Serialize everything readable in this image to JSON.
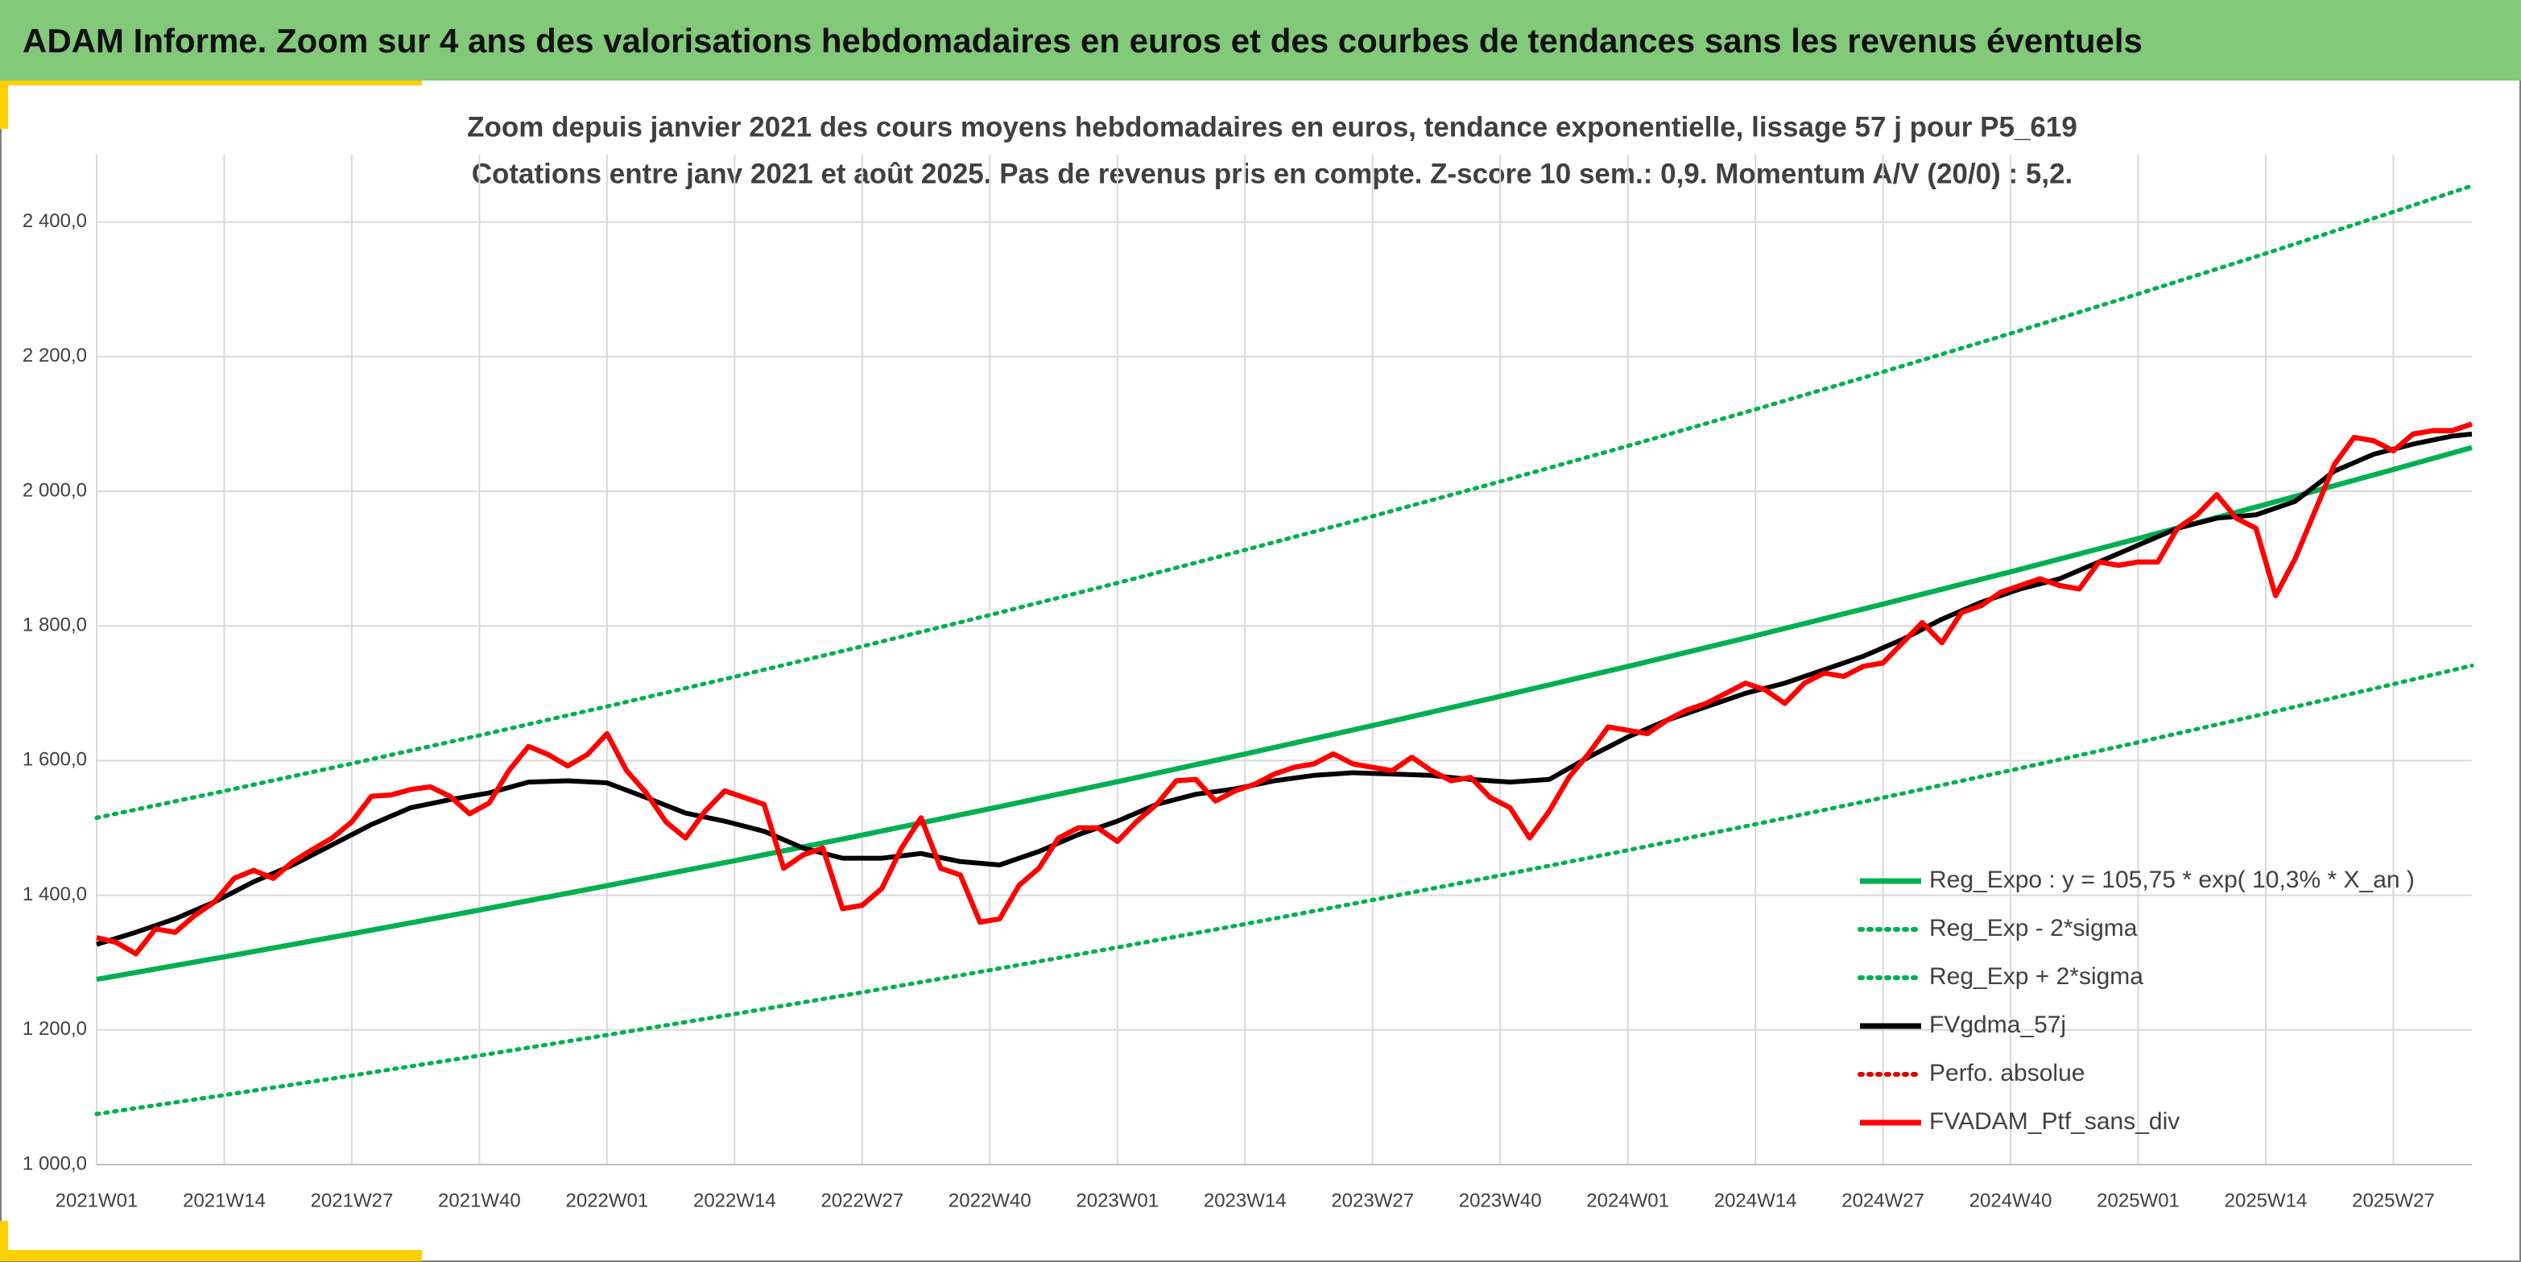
{
  "header": {
    "title": "ADAM Informe. Zoom sur 4 ans des valorisations hebdomadaires en euros et des courbes de tendances sans les revenus éventuels"
  },
  "chart_data": {
    "type": "line",
    "title": "Zoom depuis janvier 2021 des cours moyens hebdomadaires en euros, tendance exponentielle, lissage 57 j pour P5_619",
    "subtitle": "Cotations entre janv 2021 et août 2025. Pas de revenus pris en compte. Z-score 10 sem.: 0,9. Momentum A/V (20/0) : 5,2.",
    "xlim": [
      0,
      242
    ],
    "xticks": [
      {
        "value": 0,
        "label": "2021W01"
      },
      {
        "value": 13,
        "label": "2021W14"
      },
      {
        "value": 26,
        "label": "2021W27"
      },
      {
        "value": 39,
        "label": "2021W40"
      },
      {
        "value": 52,
        "label": "2022W01"
      },
      {
        "value": 65,
        "label": "2022W14"
      },
      {
        "value": 78,
        "label": "2022W27"
      },
      {
        "value": 91,
        "label": "2022W40"
      },
      {
        "value": 104,
        "label": "2023W01"
      },
      {
        "value": 117,
        "label": "2023W14"
      },
      {
        "value": 130,
        "label": "2023W27"
      },
      {
        "value": 143,
        "label": "2023W40"
      },
      {
        "value": 156,
        "label": "2024W01"
      },
      {
        "value": 169,
        "label": "2024W14"
      },
      {
        "value": 182,
        "label": "2024W27"
      },
      {
        "value": 195,
        "label": "2024W40"
      },
      {
        "value": 208,
        "label": "2025W01"
      },
      {
        "value": 221,
        "label": "2025W14"
      },
      {
        "value": 234,
        "label": "2025W27"
      }
    ],
    "ylim": [
      1000,
      2500
    ],
    "yticks": [
      {
        "value": 1000,
        "label": "1 000,0"
      },
      {
        "value": 1200,
        "label": "1 200,0"
      },
      {
        "value": 1400,
        "label": "1 400,0"
      },
      {
        "value": 1600,
        "label": "1 600,0"
      },
      {
        "value": 1800,
        "label": "1 800,0"
      },
      {
        "value": 2000,
        "label": "2 000,0"
      },
      {
        "value": 2200,
        "label": "2 200,0"
      },
      {
        "value": 2400,
        "label": "2 400,0"
      }
    ],
    "grid": true,
    "legend": "bottom-right",
    "series": [
      {
        "name": "Reg_Expo : y = 105,75 * exp( 10,3% *  X_an )",
        "color": "#00b050",
        "style": "solid",
        "x": [
          0,
          13,
          26,
          39,
          52,
          65,
          78,
          91,
          104,
          117,
          130,
          143,
          156,
          169,
          182,
          195,
          208,
          221,
          234,
          242
        ],
        "values": [
          1275,
          1308.5,
          1342.8,
          1378.0,
          1414.2,
          1451.3,
          1489.4,
          1528.5,
          1568.6,
          1609.8,
          1652.0,
          1695.4,
          1739.8,
          1785.5,
          1832.4,
          1880.4,
          1929.8,
          1980.4,
          2032.4,
          2065.0
        ]
      },
      {
        "name": "Reg_Exp - 2*sigma",
        "color": "#00b050",
        "style": "dotted",
        "x": [
          0,
          13,
          26,
          39,
          52,
          65,
          78,
          91,
          104,
          117,
          130,
          143,
          156,
          169,
          182,
          195,
          208,
          221,
          234,
          242
        ],
        "values": [
          1075,
          1103.2,
          1132.2,
          1161.9,
          1192.4,
          1223.6,
          1255.8,
          1288.7,
          1322.5,
          1357.2,
          1392.9,
          1429.4,
          1466.9,
          1505.4,
          1544.9,
          1585.5,
          1627.1,
          1669.8,
          1713.6,
          1741.1
        ]
      },
      {
        "name": "Reg_Exp + 2*sigma",
        "color": "#00b050",
        "style": "dotted",
        "x": [
          0,
          13,
          26,
          39,
          52,
          65,
          78,
          91,
          104,
          117,
          130,
          143,
          156,
          169,
          182,
          195,
          208,
          221,
          234,
          242
        ],
        "values": [
          1515,
          1554.8,
          1595.6,
          1637.4,
          1680.4,
          1724.5,
          1769.7,
          1816.2,
          1863.8,
          1912.8,
          1963.0,
          2014.5,
          2067.3,
          2121.6,
          2177.3,
          2234.4,
          2293.1,
          2353.2,
          2415.0,
          2453.7
        ]
      },
      {
        "name": "FVgdma_57j",
        "color": "#000000",
        "style": "solid",
        "x": [
          0,
          4,
          8,
          12,
          16,
          20,
          24,
          28,
          32,
          36,
          40,
          44,
          48,
          52,
          56,
          60,
          64,
          68,
          72,
          76,
          80,
          84,
          88,
          92,
          96,
          100,
          104,
          108,
          112,
          116,
          120,
          124,
          128,
          132,
          136,
          140,
          144,
          148,
          152,
          156,
          160,
          164,
          168,
          172,
          176,
          180,
          184,
          188,
          192,
          196,
          200,
          204,
          208,
          212,
          216,
          220,
          224,
          228,
          232,
          236,
          240,
          242
        ],
        "values": [
          1327,
          1345,
          1365,
          1390,
          1420,
          1445,
          1475,
          1505,
          1530,
          1542,
          1552,
          1568,
          1570,
          1567,
          1545,
          1522,
          1510,
          1495,
          1470,
          1455,
          1455,
          1462,
          1450,
          1445,
          1465,
          1490,
          1510,
          1535,
          1550,
          1558,
          1570,
          1578,
          1582,
          1580,
          1578,
          1572,
          1568,
          1572,
          1605,
          1635,
          1660,
          1680,
          1700,
          1715,
          1735,
          1755,
          1780,
          1810,
          1835,
          1855,
          1870,
          1895,
          1920,
          1945,
          1960,
          1965,
          1985,
          2030,
          2055,
          2070,
          2082,
          2085
        ]
      },
      {
        "name": "Perfo. absolue",
        "color": "#e00000",
        "style": "dotted",
        "x": [],
        "values": []
      },
      {
        "name": "FVADAM_Ptf_sans_div",
        "color": "#ff0000",
        "style": "solid",
        "x": [
          0,
          2,
          4,
          6,
          8,
          10,
          12,
          14,
          16,
          18,
          20,
          22,
          24,
          26,
          28,
          30,
          32,
          34,
          36,
          38,
          40,
          42,
          44,
          46,
          48,
          50,
          52,
          54,
          56,
          58,
          60,
          62,
          64,
          66,
          68,
          70,
          72,
          74,
          76,
          78,
          80,
          82,
          84,
          86,
          88,
          90,
          92,
          94,
          96,
          98,
          100,
          102,
          104,
          106,
          108,
          110,
          112,
          114,
          116,
          118,
          120,
          122,
          124,
          126,
          128,
          130,
          132,
          134,
          136,
          138,
          140,
          142,
          144,
          146,
          148,
          150,
          152,
          154,
          156,
          158,
          160,
          162,
          164,
          166,
          168,
          170,
          172,
          174,
          176,
          178,
          180,
          182,
          184,
          186,
          188,
          190,
          192,
          194,
          196,
          198,
          200,
          202,
          204,
          206,
          208,
          210,
          212,
          214,
          216,
          218,
          220,
          222,
          224,
          226,
          228,
          230,
          232,
          234,
          236,
          238,
          240,
          242
        ],
        "values": [
          1337,
          1330,
          1313,
          1350,
          1345,
          1370,
          1390,
          1425,
          1437,
          1425,
          1450,
          1468,
          1485,
          1509,
          1547,
          1549,
          1557,
          1561,
          1547,
          1521,
          1537,
          1585,
          1621,
          1609,
          1592,
          1609,
          1640,
          1585,
          1552,
          1509,
          1485,
          1525,
          1555,
          1545,
          1535,
          1440,
          1460,
          1470,
          1380,
          1385,
          1410,
          1470,
          1515,
          1440,
          1430,
          1360,
          1365,
          1415,
          1440,
          1485,
          1500,
          1500,
          1480,
          1510,
          1535,
          1570,
          1572,
          1540,
          1555,
          1565,
          1580,
          1590,
          1595,
          1610,
          1595,
          1590,
          1585,
          1605,
          1585,
          1570,
          1575,
          1545,
          1530,
          1485,
          1525,
          1575,
          1610,
          1650,
          1645,
          1640,
          1660,
          1675,
          1685,
          1700,
          1715,
          1705,
          1685,
          1715,
          1730,
          1725,
          1740,
          1745,
          1775,
          1805,
          1775,
          1820,
          1830,
          1850,
          1860,
          1870,
          1860,
          1855,
          1895,
          1890,
          1895,
          1895,
          1945,
          1965,
          1995,
          1960,
          1945,
          1845,
          1900,
          1970,
          2040,
          2080,
          2075,
          2060,
          2085,
          2090,
          2090,
          2100
        ]
      }
    ]
  }
}
